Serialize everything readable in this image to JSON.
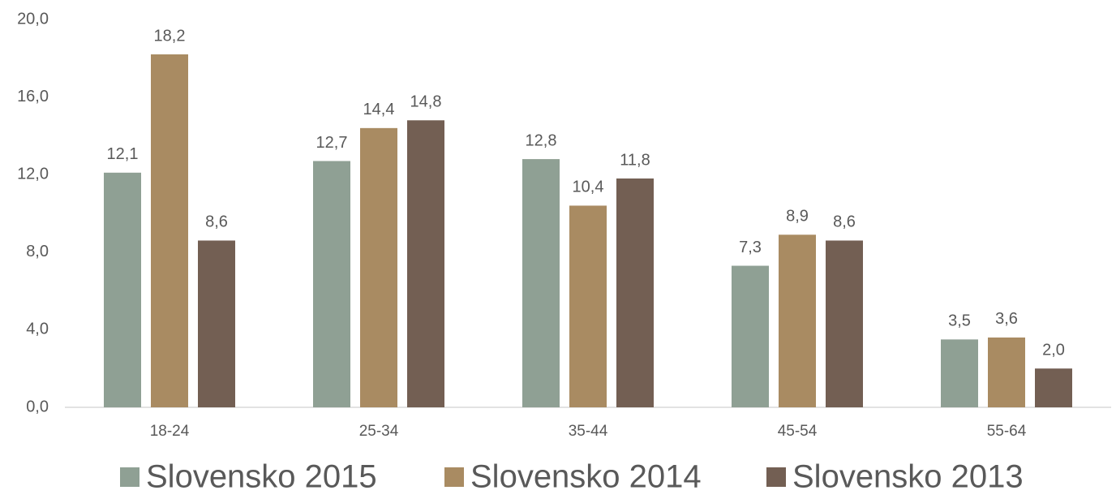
{
  "chart_data": {
    "type": "bar",
    "categories": [
      "18-24",
      "25-34",
      "35-44",
      "45-54",
      "55-64"
    ],
    "series": [
      {
        "name": "Slovensko 2015",
        "color": "#8fa094",
        "values": [
          12.1,
          12.7,
          12.8,
          7.3,
          3.5
        ],
        "value_labels": [
          "12,1",
          "12,7",
          "12,8",
          "7,3",
          "3,5"
        ]
      },
      {
        "name": "Slovensko 2014",
        "color": "#a98b62",
        "values": [
          18.2,
          14.4,
          10.4,
          8.9,
          3.6
        ],
        "value_labels": [
          "18,2",
          "14,4",
          "10,4",
          "8,9",
          "3,6"
        ]
      },
      {
        "name": "Slovensko 2013",
        "color": "#735f53",
        "values": [
          8.6,
          14.8,
          11.8,
          8.6,
          2.0
        ],
        "value_labels": [
          "8,6",
          "14,8",
          "11,8",
          "8,6",
          "2,0"
        ]
      }
    ],
    "ylim": [
      0,
      20
    ],
    "yticks": [
      {
        "value": 0,
        "label": "0,0"
      },
      {
        "value": 4,
        "label": "4,0"
      },
      {
        "value": 8,
        "label": "8,0"
      },
      {
        "value": 12,
        "label": "12,0"
      },
      {
        "value": 16,
        "label": "16,0"
      },
      {
        "value": 20,
        "label": "20,0"
      }
    ],
    "grid": false,
    "legend": "bottom"
  }
}
